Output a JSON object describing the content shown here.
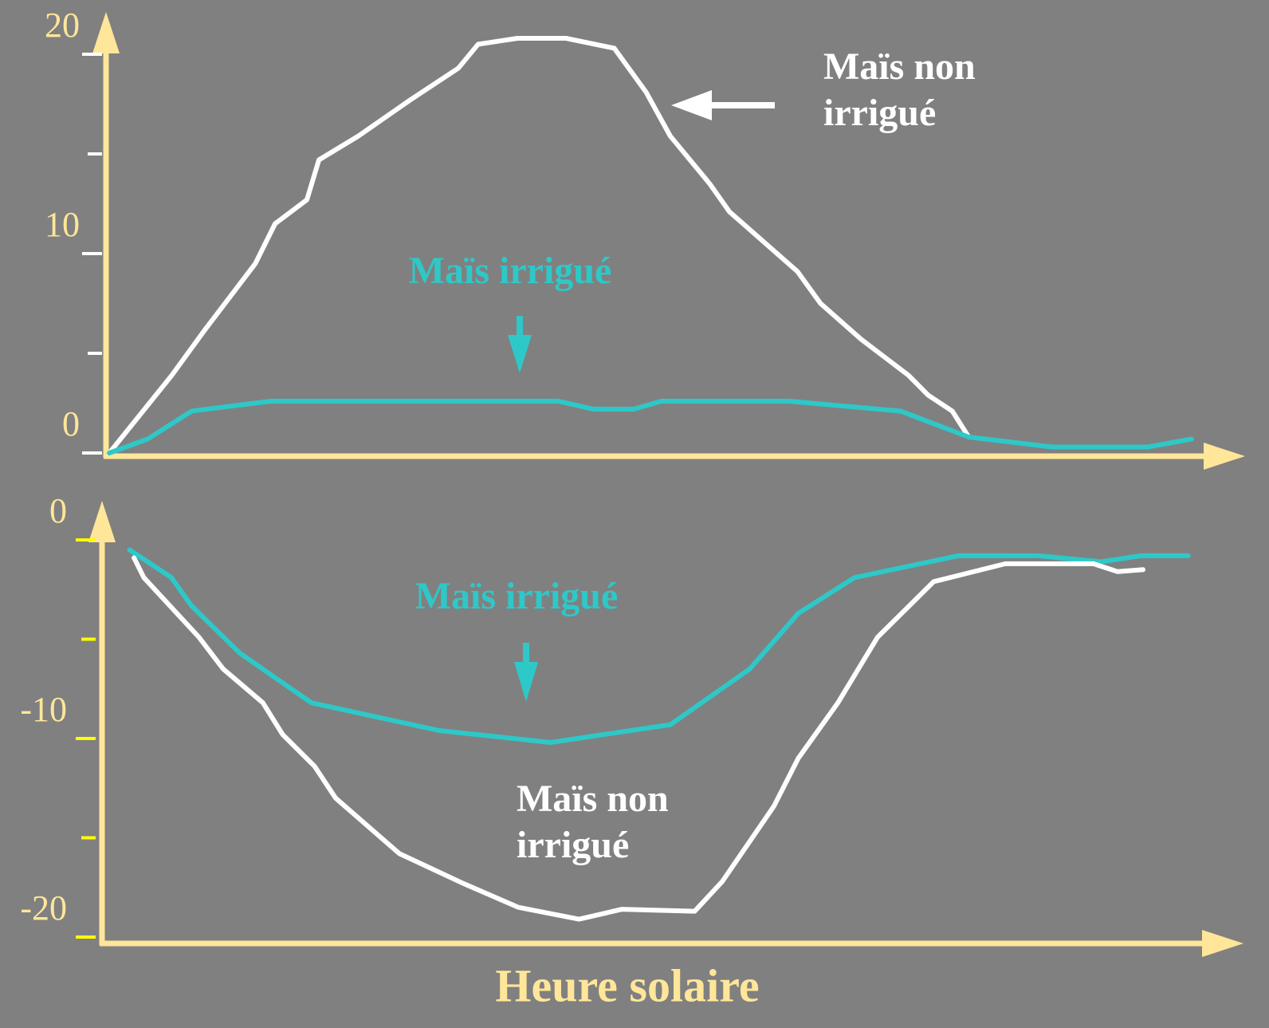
{
  "chart_data": [
    {
      "type": "line",
      "xlim": [
        0,
        100
      ],
      "ylim": [
        0,
        20
      ],
      "yticks": [
        0,
        10,
        20
      ],
      "yminorticks": [
        5,
        15
      ],
      "axis_color": "#ffe699",
      "tick_color": "#ffffff",
      "series": [
        {
          "name": "Maïs non irrigué",
          "color": "#ffffff",
          "x": [
            0.3,
            6,
            8.9,
            13.6,
            15.4,
            18.3,
            19.4,
            23,
            27.7,
            32.1,
            33.9,
            37.5,
            41.9,
            46.3,
            49.2,
            51.4,
            55,
            56.8,
            63,
            65.1,
            68.8,
            73.1,
            74.9,
            77.1,
            78.6
          ],
          "values": [
            0,
            3.9,
            6.1,
            9.5,
            11.5,
            12.7,
            14.7,
            15.9,
            17.7,
            19.3,
            20.5,
            20.8,
            20.8,
            20.3,
            18.1,
            15.9,
            13.5,
            12.1,
            9.1,
            7.5,
            5.7,
            3.9,
            2.9,
            2.1,
            0.8
          ]
        },
        {
          "name": "Maïs irrigué",
          "color": "#2ec8c8",
          "x": [
            0.3,
            3.8,
            7.8,
            15,
            41.2,
            44.4,
            48.1,
            50.6,
            62.2,
            72.4,
            78.6,
            86.2,
            94.9,
            98.9
          ],
          "values": [
            0,
            0.7,
            2.1,
            2.6,
            2.6,
            2.2,
            2.2,
            2.6,
            2.6,
            2.1,
            0.8,
            0.3,
            0.3,
            0.7
          ]
        }
      ]
    },
    {
      "type": "line",
      "xlim": [
        0,
        100
      ],
      "ylim": [
        -20,
        0
      ],
      "yticks": [
        -20,
        -10,
        0
      ],
      "yminorticks": [
        -15,
        -5
      ],
      "axis_color": "#ffe699",
      "tick_color": "#ffff00",
      "xlabel": "Heure solaire",
      "series": [
        {
          "name": "Maïs irrigué",
          "color": "#2ec8c8",
          "x": [
            2.5,
            6.3,
            8.1,
            12.5,
            19,
            30.6,
            40.7,
            51.6,
            58.8,
            63.2,
            68.3,
            77.7,
            85,
            90.7,
            94.3,
            98.6
          ],
          "values": [
            -0.5,
            -1.9,
            -3.3,
            -5.7,
            -8.2,
            -9.6,
            -10.2,
            -9.3,
            -6.5,
            -3.7,
            -1.9,
            -0.8,
            -0.8,
            -1.1,
            -0.8,
            -0.8
          ]
        },
        {
          "name": "Maïs non irrigué",
          "color": "#ffffff",
          "x": [
            2.9,
            3.8,
            8.8,
            11,
            14.6,
            16.4,
            19.3,
            21.2,
            27,
            32.8,
            37.8,
            43.3,
            47.2,
            53.8,
            56.3,
            61,
            63.2,
            66.8,
            70.4,
            75.5,
            82,
            90,
            92.2,
            94.5
          ],
          "values": [
            -0.9,
            -1.9,
            -4.9,
            -6.5,
            -8.2,
            -9.8,
            -11.4,
            -13,
            -15.8,
            -17.3,
            -18.5,
            -19.1,
            -18.6,
            -18.7,
            -17.2,
            -13.4,
            -11,
            -8.2,
            -4.9,
            -2.1,
            -1.2,
            -1.2,
            -1.6,
            -1.5
          ]
        }
      ]
    }
  ]
}
